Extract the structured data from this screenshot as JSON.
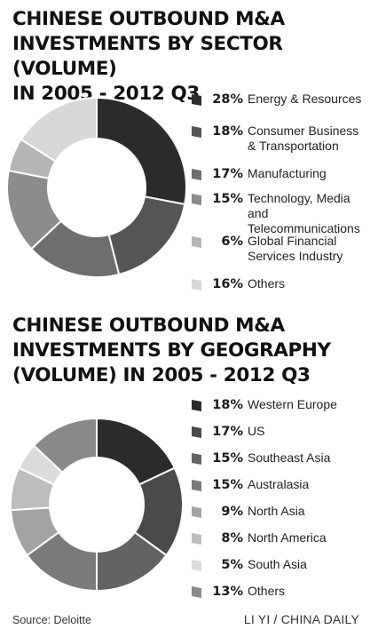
{
  "chart_data": [
    {
      "type": "pie",
      "title": "CHINESE OUTBOUND M&A\nINVESTMENTS BY SECTOR (VOLUME)\nIN 2005 - 2012 Q3",
      "categories": [
        "Energy & Resources",
        "Consumer Business & Transportation",
        "Manufacturing",
        "Technology, Media and Telecommunications",
        "Global Financial Services Industry",
        "Others"
      ],
      "values": [
        28,
        18,
        17,
        15,
        6,
        16
      ],
      "value_labels": [
        "28%",
        "18%",
        "17%",
        "15%",
        "6%",
        "16%"
      ],
      "colors": [
        "#2b2b2b",
        "#555555",
        "#6e6e6e",
        "#8c8c8c",
        "#b5b5b5",
        "#d8d8d8"
      ],
      "legend": "right"
    },
    {
      "type": "pie",
      "title": "CHINESE OUTBOUND M&A\nINVESTMENTS BY GEOGRAPHY\n(VOLUME) IN 2005 - 2012 Q3",
      "categories": [
        "Western Europe",
        "US",
        "Southeast Asia",
        "Australasia",
        "North Asia",
        "North America",
        "South Asia",
        "Others"
      ],
      "values": [
        18,
        17,
        15,
        15,
        9,
        8,
        5,
        13
      ],
      "value_labels": [
        "18%",
        "17%",
        "15%",
        "15%",
        "9%",
        "8%",
        "5%",
        "13%"
      ],
      "colors": [
        "#2b2b2b",
        "#4a4a4a",
        "#636363",
        "#7a7a7a",
        "#a3a3a3",
        "#bdbdbd",
        "#dcdcdc",
        "#8a8a8a"
      ],
      "legend": "right"
    }
  ],
  "footer": {
    "source": "Source: Deloitte",
    "credit": "LI YI / CHINA DAILY"
  }
}
